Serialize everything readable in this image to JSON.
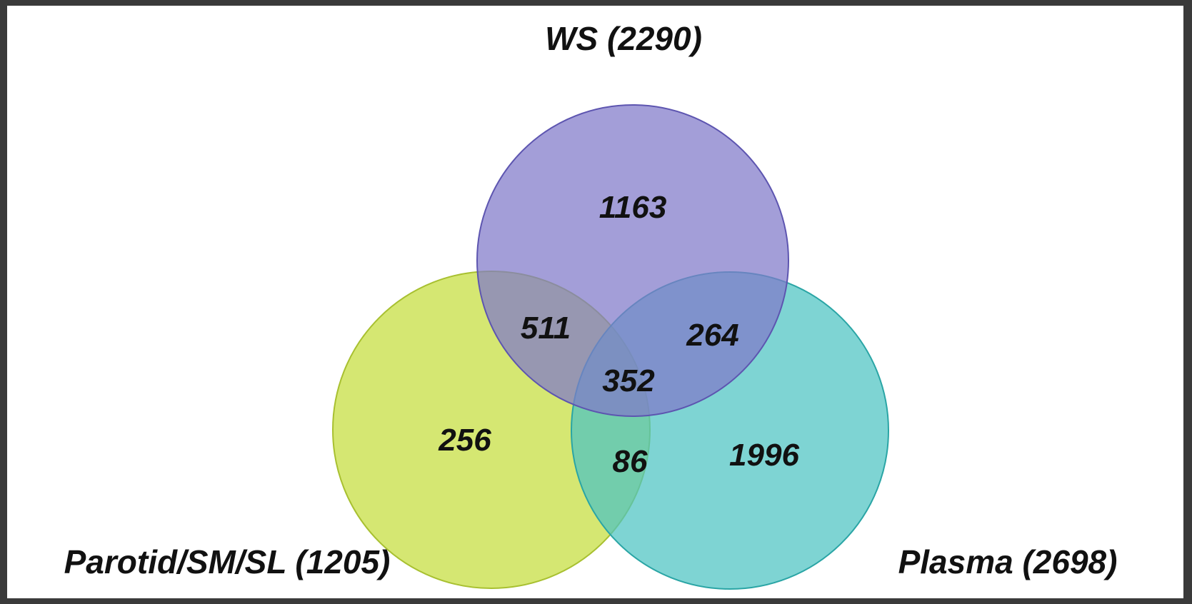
{
  "sets": [
    {
      "id": "ws",
      "label": "WS (2290)",
      "color": "#7f78c9"
    },
    {
      "id": "gland",
      "label": "Parotid/SM/SL (1205)",
      "color": "#c9e04a"
    },
    {
      "id": "plasma",
      "label": "Plasma (2698)",
      "color": "#4cc4c2"
    }
  ],
  "regions": {
    "ws_only": "1163",
    "ws_gland": "511",
    "ws_plasma": "264",
    "all_three": "352",
    "gland_only": "256",
    "gland_plasma": "86",
    "plasma_only": "1996"
  }
}
